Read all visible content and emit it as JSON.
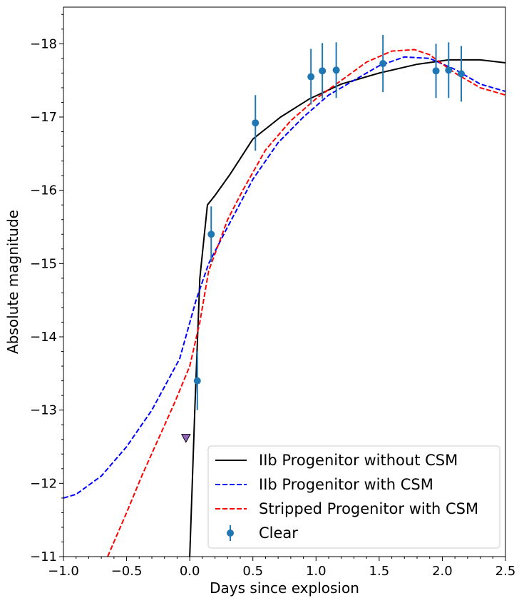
{
  "chart_data": {
    "type": "line",
    "title": "",
    "xlabel": "Days since explosion",
    "ylabel": "Absolute magnitude",
    "xlim": [
      -1.0,
      2.5
    ],
    "ylim": [
      -11,
      -18.5
    ],
    "y_inverted": true,
    "grid": false,
    "legend_position": "lower-right",
    "x_ticks": [
      -1.0,
      -0.5,
      0.0,
      0.5,
      1.0,
      1.5,
      2.0,
      2.5
    ],
    "x_tick_labels": [
      "−1.0",
      "−0.5",
      "0.0",
      "0.5",
      "1.0",
      "1.5",
      "2.0",
      "2.5"
    ],
    "y_ticks": [
      -11,
      -12,
      -13,
      -14,
      -15,
      -16,
      -17,
      -18
    ],
    "y_tick_labels": [
      "−11",
      "−12",
      "−13",
      "−14",
      "−15",
      "−16",
      "−17",
      "−18"
    ],
    "series": [
      {
        "name": "IIb Progenitor without CSM",
        "style": "solid",
        "color": "#000000",
        "x": [
          0.0,
          0.04,
          0.08,
          0.14,
          0.2,
          0.32,
          0.5,
          0.72,
          0.95,
          1.2,
          1.5,
          1.8,
          2.05,
          2.3,
          2.5
        ],
        "y": [
          -11.0,
          -13.0,
          -14.8,
          -15.8,
          -15.93,
          -16.22,
          -16.7,
          -17.0,
          -17.25,
          -17.45,
          -17.6,
          -17.72,
          -17.78,
          -17.78,
          -17.74
        ]
      },
      {
        "name": "IIb Progenitor with CSM",
        "style": "dashed",
        "color": "#0000ff",
        "x": [
          -1.0,
          -0.9,
          -0.7,
          -0.5,
          -0.3,
          -0.08,
          0.05,
          0.15,
          0.3,
          0.5,
          0.7,
          0.9,
          1.1,
          1.3,
          1.5,
          1.7,
          1.9,
          2.1,
          2.3,
          2.5
        ],
        "y": [
          -11.8,
          -11.85,
          -12.1,
          -12.5,
          -13.0,
          -13.7,
          -14.5,
          -15.0,
          -15.5,
          -16.15,
          -16.65,
          -17.0,
          -17.3,
          -17.5,
          -17.7,
          -17.82,
          -17.8,
          -17.65,
          -17.45,
          -17.35
        ]
      },
      {
        "name": "Stripped Progenitor with CSM",
        "style": "dashed",
        "color": "#ff0000",
        "x": [
          -0.65,
          -0.5,
          -0.38,
          -0.25,
          -0.12,
          0.0,
          0.08,
          0.15,
          0.3,
          0.42,
          0.6,
          0.8,
          1.0,
          1.2,
          1.4,
          1.6,
          1.78,
          1.9,
          2.1,
          2.3,
          2.5
        ],
        "y": [
          -11.0,
          -11.6,
          -12.1,
          -12.6,
          -13.1,
          -13.6,
          -14.2,
          -14.9,
          -15.6,
          -16.0,
          -16.55,
          -16.95,
          -17.25,
          -17.5,
          -17.75,
          -17.9,
          -17.92,
          -17.85,
          -17.6,
          -17.4,
          -17.3
        ]
      }
    ],
    "points": {
      "name": "Clear",
      "color": "#1f77b4",
      "x": [
        0.06,
        0.17,
        0.52,
        0.96,
        1.05,
        1.16,
        1.53,
        1.95,
        2.05,
        2.15
      ],
      "y": [
        -13.4,
        -15.4,
        -16.92,
        -17.55,
        -17.63,
        -17.64,
        -17.73,
        -17.63,
        -17.64,
        -17.59
      ],
      "err": [
        0.4,
        0.38,
        0.38,
        0.38,
        0.38,
        0.38,
        0.39,
        0.37,
        0.38,
        0.38
      ]
    },
    "upper_limit": {
      "x": -0.03,
      "y": -12.62,
      "color": "#9467bd"
    },
    "legend": [
      {
        "label": "IIb Progenitor without CSM",
        "style": "solid",
        "color": "#000000"
      },
      {
        "label": "IIb Progenitor with CSM",
        "style": "dashed",
        "color": "#0000ff"
      },
      {
        "label": "Stripped Progenitor with CSM",
        "style": "dashed",
        "color": "#ff0000"
      },
      {
        "label": "Clear",
        "style": "errorbar",
        "color": "#1f77b4"
      }
    ]
  }
}
